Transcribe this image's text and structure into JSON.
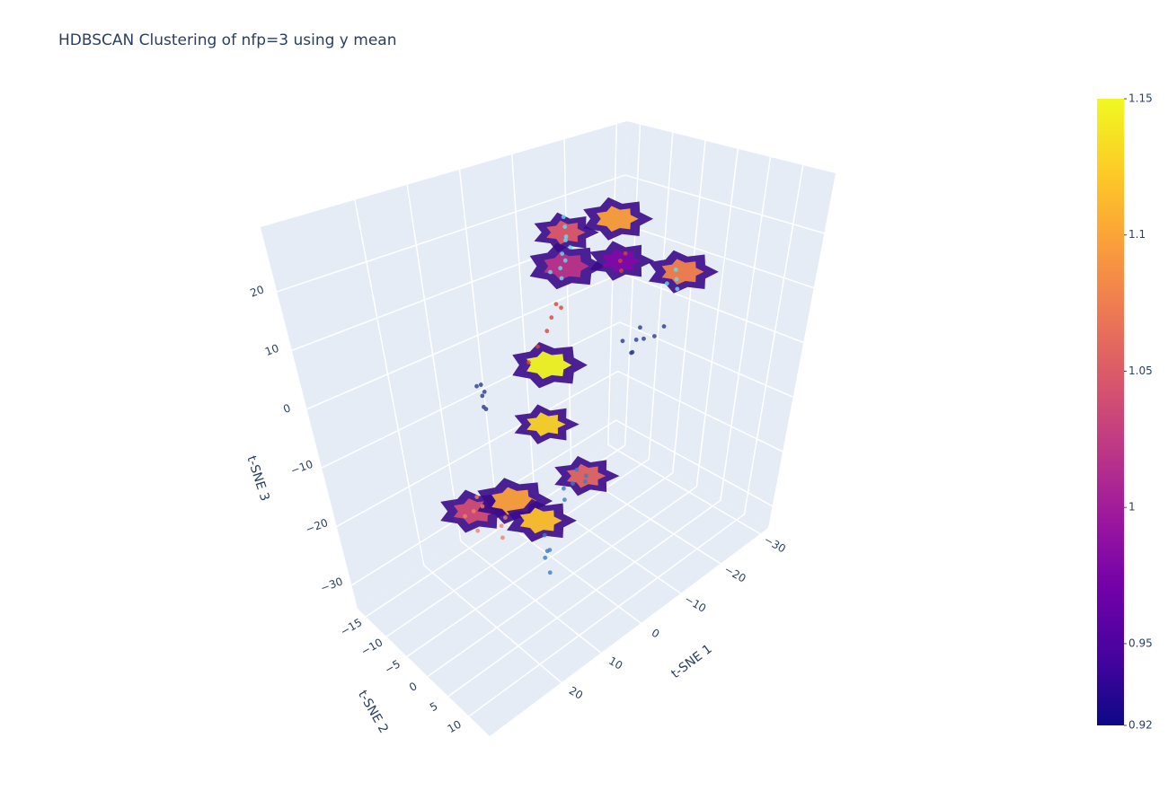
{
  "chart_data": {
    "type": "scatter3d",
    "title": "HDBSCAN Clustering of nfp=3 using y mean",
    "xaxis_title": "t-SNE 1",
    "yaxis_title": "t-SNE 2",
    "zaxis_title": "t-SNE 3",
    "xlim": [
      -32,
      38
    ],
    "xticks": [
      {
        "value": -30,
        "label": "−30"
      },
      {
        "value": -20,
        "label": "−20"
      },
      {
        "value": -10,
        "label": "−10"
      },
      0,
      10,
      20
    ],
    "ylim": [
      -17,
      15
    ],
    "yticks": [
      {
        "value": -15,
        "label": "−15"
      },
      {
        "value": -10,
        "label": "−10"
      },
      {
        "value": -5,
        "label": "−5"
      },
      0,
      5,
      10
    ],
    "zlim": [
      -34,
      31
    ],
    "zticks": [
      {
        "value": -30,
        "label": "−30"
      },
      {
        "value": -20,
        "label": "−20"
      },
      {
        "value": -10,
        "label": "−10"
      },
      0,
      10,
      20
    ],
    "series": [
      {
        "color": "#5fe0f0",
        "x": [
          1,
          2,
          0,
          1.5,
          0,
          1,
          2,
          3,
          1,
          4,
          -22,
          -21,
          -23,
          -20
        ],
        "y": [
          0,
          1,
          -1,
          0.5,
          0,
          -0.5,
          0,
          1,
          0,
          0,
          0,
          1,
          -1,
          0
        ],
        "z": [
          28,
          27,
          29,
          26,
          24,
          23,
          21,
          20,
          22,
          21,
          10,
          9,
          11,
          10
        ]
      },
      {
        "color": "#2a3a8c",
        "x": [
          19,
          20,
          18,
          19,
          20,
          18.5,
          -14,
          -12,
          -16,
          -13,
          -15,
          -18,
          -20,
          -11
        ],
        "y": [
          0,
          1,
          -1,
          0.5,
          0,
          0,
          0,
          1,
          -1,
          0,
          0.5,
          0,
          0,
          0
        ],
        "z": [
          5,
          4,
          6,
          3,
          7,
          5.5,
          2,
          1,
          3,
          0,
          2,
          1,
          2,
          3
        ]
      },
      {
        "color": "#d9443a",
        "x": [
          -10,
          -9,
          -11,
          4,
          5,
          7,
          9,
          3,
          2
        ],
        "y": [
          0,
          1,
          0,
          0,
          0,
          0,
          0,
          0,
          0
        ],
        "z": [
          18,
          17,
          19,
          13,
          11,
          9,
          7,
          15,
          14
        ]
      },
      {
        "color": "#e8836a",
        "x": [
          23,
          22,
          24,
          23,
          22,
          17,
          18,
          16
        ],
        "y": [
          0,
          1,
          -1,
          0.5,
          0,
          0,
          1,
          0
        ],
        "z": [
          -13,
          -12,
          -14,
          -16,
          -11,
          -18,
          -19,
          -17
        ]
      },
      {
        "color": "#3b7dc4",
        "x": [
          0,
          -2,
          1,
          -1,
          2,
          -3,
          6.5,
          7,
          6,
          7,
          6
        ],
        "y": [
          0,
          1,
          -1,
          0,
          0,
          0,
          0,
          1,
          -1,
          0,
          0
        ],
        "z": [
          -18,
          -17,
          -19,
          -16,
          -20,
          -19,
          -27,
          -26,
          -29,
          -24,
          -31
        ]
      }
    ],
    "surfaces": {
      "x": [
        1,
        -9,
        1,
        -10,
        -23,
        5,
        6,
        23,
        14,
        -3,
        8
      ],
      "y": [
        0,
        0,
        0,
        0,
        0,
        0,
        0,
        0,
        0,
        0,
        0
      ],
      "z": [
        27,
        26,
        21,
        18,
        11,
        5,
        -5,
        -13,
        -15,
        -18,
        -21
      ],
      "values": [
        1.05,
        1.1,
        1.02,
        0.98,
        1.08,
        1.15,
        1.13,
        1.04,
        1.1,
        1.06,
        1.12
      ]
    },
    "colorbar": {
      "clim": [
        0.92,
        1.15
      ],
      "ticks": [
        0.92,
        0.95,
        1,
        1.05,
        1.1,
        1.15
      ]
    }
  }
}
